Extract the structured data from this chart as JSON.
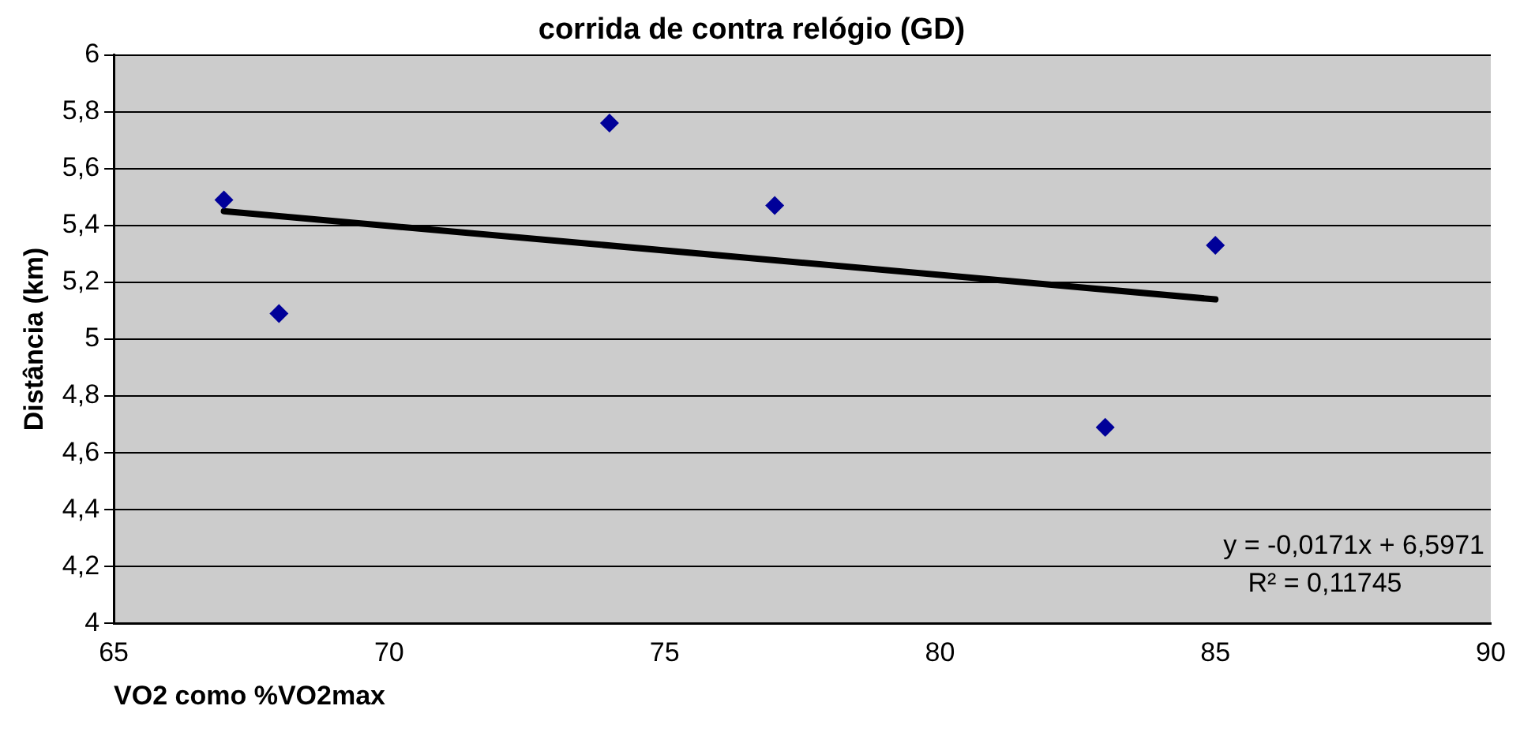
{
  "chart_data": {
    "type": "scatter",
    "title": "corrida de contra relógio (GD)",
    "xlabel": "VO2 como %VO2max",
    "ylabel": "Distância (km)",
    "marker": "diamond",
    "grid": "y",
    "series": [
      {
        "color": "#000099",
        "x": [
          67,
          68,
          74,
          77,
          83,
          85
        ],
        "values": [
          5.49,
          5.09,
          5.76,
          5.47,
          4.69,
          5.33
        ]
      },
      {
        "type": "line",
        "color": "#000000",
        "marker": "none",
        "x": [
          67,
          85
        ],
        "values": [
          5.45,
          5.14
        ]
      }
    ],
    "xlim": [
      65,
      90
    ],
    "xticks": [
      65,
      70,
      75,
      80,
      85,
      90
    ],
    "ylim": [
      4,
      6
    ],
    "yticks": [
      4,
      {
        "value": 4.2,
        "label": "4,2"
      },
      {
        "value": 4.4,
        "label": "4,4"
      },
      {
        "value": 4.6,
        "label": "4,6"
      },
      {
        "value": 4.8,
        "label": "4,8"
      },
      5,
      {
        "value": 5.2,
        "label": "5,2"
      },
      {
        "value": 5.4,
        "label": "5,4"
      },
      {
        "value": 5.6,
        "label": "5,6"
      },
      {
        "value": 5.8,
        "label": "5,8"
      },
      6
    ],
    "legend": false,
    "annotations": [
      "y = -0,0171x + 6,5971",
      "R² = 0,11745"
    ]
  }
}
